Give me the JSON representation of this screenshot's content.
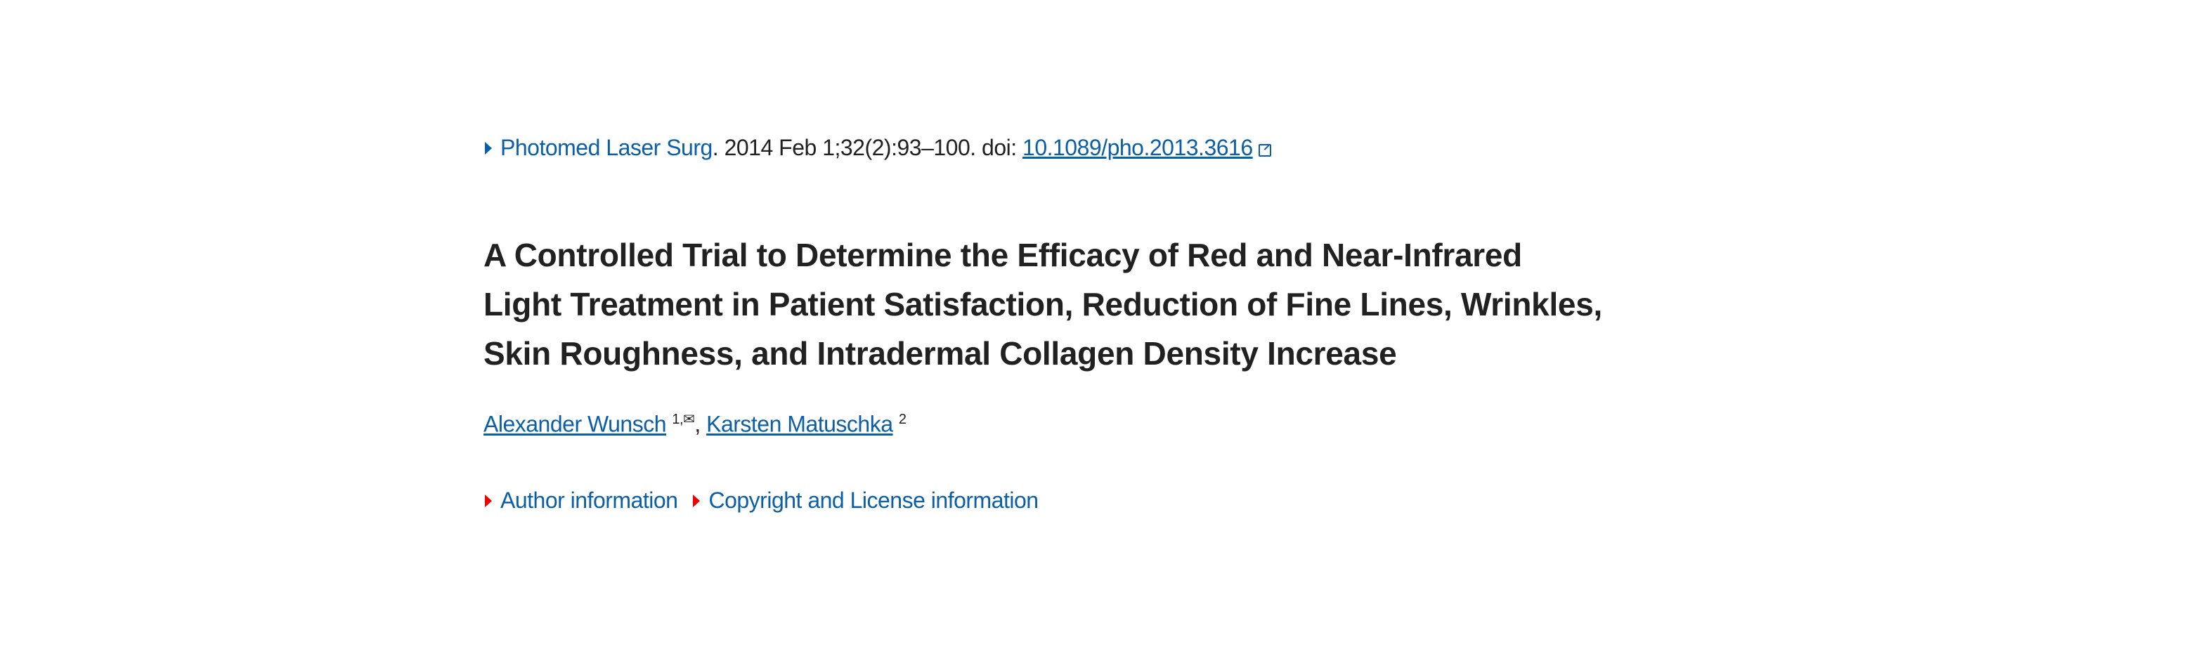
{
  "citation": {
    "journal": "Photomed Laser Surg",
    "details": ". 2014 Feb 1;32(2):93–100. doi: ",
    "doi": "10.1089/pho.2013.3616",
    "external_link_icon": "external-link-icon"
  },
  "title": {
    "lines": [
      "A Controlled Trial to Determine the Efficacy of Red and Near-Infrared",
      "Light Treatment in Patient Satisfaction, Reduction of Fine Lines, Wrinkles,",
      "Skin Roughness, and Intradermal Collagen Density Increase"
    ]
  },
  "authors": [
    {
      "name": "Alexander Wunsch",
      "sup": "1,✉"
    },
    {
      "name": "Karsten Matuschka",
      "sup": "2"
    }
  ],
  "author_separator": ", ",
  "info_links": [
    "Author information",
    "Copyright and License information"
  ],
  "colors": {
    "link": "#0b5ea8",
    "toggle_arrow": "#e00000",
    "text": "#212121"
  }
}
